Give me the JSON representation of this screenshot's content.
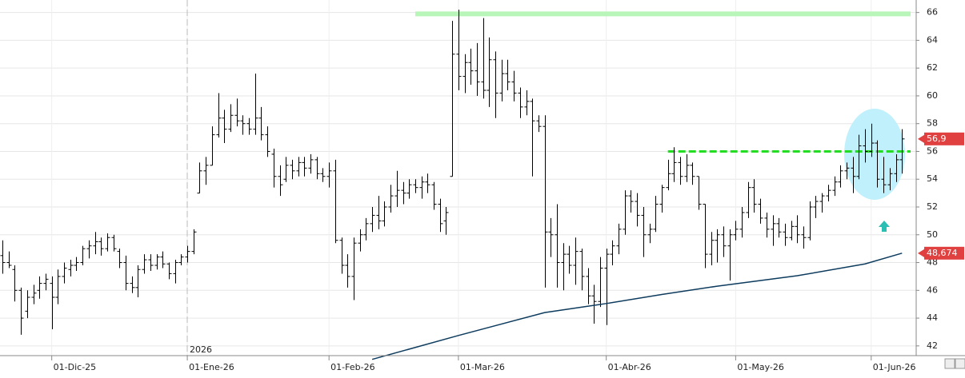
{
  "chart_data": {
    "type": "ohlc",
    "color": "#000000",
    "xlim": [
      -0.4,
      148.3
    ],
    "ylim": [
      41.3,
      66.9
    ],
    "xticks": [
      {
        "value": 8,
        "label": "01-Dic-25"
      },
      {
        "value": 30,
        "label": "01-Ene-26"
      },
      {
        "value": 53,
        "label": "01-Feb-26"
      },
      {
        "value": 74,
        "label": "01-Mar-26"
      },
      {
        "value": 98,
        "label": "01-Abr-26"
      },
      {
        "value": 119,
        "label": "01-May-26"
      },
      {
        "value": 141,
        "label": "01-Jun-26"
      }
    ],
    "yticks": [
      42,
      44,
      46,
      48,
      50,
      52,
      54,
      56,
      58,
      60,
      62,
      64,
      66
    ],
    "grid": true,
    "year_label": "2026",
    "open": [
      48.5,
      48,
      47.5,
      46,
      44.5,
      45.5,
      46,
      46.5,
      46.5,
      45.5,
      47,
      47.5,
      47.8,
      48,
      49,
      49.2,
      49.5,
      49,
      49.8,
      48.8,
      48,
      46.5,
      46.2,
      47.5,
      48.2,
      47.8,
      48.4,
      47.9,
      47.2,
      48,
      48.4,
      48.8,
      53,
      54.6,
      55,
      57.2,
      58.4,
      57.6,
      58.6,
      58.2,
      58,
      57.6,
      58.4,
      57.2,
      55.8,
      54.2,
      54,
      55,
      54.6,
      55.2,
      54.8,
      55.4,
      54.4,
      54.2,
      54.6,
      49.6,
      47.8,
      47,
      49.4,
      50,
      50.8,
      51.4,
      51,
      52,
      52.8,
      53.2,
      53,
      53.6,
      53.4,
      53.8,
      53.6,
      52.2,
      51,
      54.2,
      63,
      61.4,
      62.4,
      61.8,
      61,
      60.4,
      62.6,
      60.2,
      61.6,
      61,
      60.2,
      59.2,
      59.6,
      58.2,
      57.8,
      50.2,
      50,
      48,
      48.6,
      47.8,
      48.8,
      47,
      45.6,
      45.2,
      47.6,
      48.6,
      49.2,
      50.4,
      52.8,
      52.4,
      51.4,
      50,
      50.4,
      52.2,
      53.4,
      54.4,
      55.2,
      54.2,
      55,
      54.2,
      52.2,
      48.6,
      49.6,
      50,
      49.2,
      50,
      50.4,
      51.6,
      53.4,
      52.2,
      51.2,
      50.4,
      50.8,
      50.2,
      49.8,
      50.6,
      50,
      49.8,
      52,
      52.4,
      52.8,
      53.2,
      53.8,
      54.6,
      54.8,
      54.2,
      56.4,
      56,
      56.6,
      54,
      53.6,
      54.4,
      55.4
    ],
    "high": [
      49.6,
      48.8,
      47.8,
      46.2,
      46,
      46.4,
      47,
      47.2,
      47,
      47.5,
      48,
      48.2,
      48.4,
      49.2,
      49.6,
      50.2,
      49.8,
      50.1,
      50,
      49,
      48.5,
      47,
      47.8,
      48.6,
      48.6,
      48.6,
      48.8,
      48,
      48.2,
      48.6,
      49.2,
      50.4,
      55.2,
      55.6,
      57.8,
      60.2,
      59,
      59.4,
      59.8,
      58.6,
      58.4,
      61.6,
      59.2,
      57.8,
      56.2,
      55,
      55.6,
      55.4,
      55.6,
      55.6,
      55.8,
      55.6,
      54.8,
      55.2,
      55.4,
      49.8,
      48.6,
      49.8,
      50.4,
      51.2,
      52,
      52.8,
      52.4,
      53.6,
      54.6,
      53.8,
      54,
      54,
      54.2,
      54.4,
      53.8,
      52.6,
      52,
      65.4,
      66.2,
      63,
      63.4,
      63.8,
      65.6,
      64.2,
      63.2,
      62.6,
      62.6,
      61.8,
      60.6,
      60.4,
      59.8,
      58.6,
      58.6,
      51.2,
      52.2,
      49.4,
      49.2,
      49.8,
      49,
      47.6,
      46.4,
      48.4,
      49,
      49.6,
      50.8,
      53.2,
      53.2,
      53,
      52,
      50.8,
      52.8,
      53.6,
      55.4,
      56.3,
      55.6,
      55.8,
      55.2,
      54.2,
      52.2,
      50.2,
      50.4,
      50.6,
      50.4,
      51,
      52,
      53.8,
      54,
      52.6,
      51.6,
      51.4,
      51.2,
      50.8,
      51,
      51.4,
      50.6,
      52.4,
      52.8,
      53,
      53.6,
      54.2,
      55,
      55.2,
      55.6,
      57.2,
      57.6,
      58,
      56.8,
      55.6,
      54.8,
      55.8,
      57.6
    ],
    "low": [
      47.2,
      47.6,
      45.2,
      42.8,
      44,
      45,
      45.4,
      46,
      43.2,
      45,
      46.5,
      47,
      47.4,
      47.8,
      48.3,
      48.6,
      48.5,
      48.8,
      48.8,
      47.6,
      46,
      45.8,
      45.5,
      47.2,
      47.4,
      47.5,
      47.6,
      46.8,
      46.5,
      47.8,
      48,
      48.6,
      53,
      53.6,
      55,
      57,
      56.6,
      57.4,
      57.8,
      57.2,
      57.2,
      57.2,
      56.8,
      55.6,
      53.4,
      52.8,
      53.8,
      54,
      54.2,
      54.2,
      54.4,
      54,
      53.8,
      53.4,
      49.4,
      47.2,
      46.2,
      45.3,
      48.8,
      49.6,
      50.2,
      50.4,
      50.6,
      51.6,
      52,
      52.2,
      52.6,
      53,
      52.6,
      53,
      51.8,
      50.2,
      50,
      54.2,
      60.4,
      60.2,
      60.8,
      60,
      59.8,
      59.2,
      58.4,
      59.6,
      60.4,
      59.6,
      58.4,
      58.6,
      54.2,
      57.4,
      46.2,
      48.4,
      46.2,
      46,
      47.2,
      46.4,
      46,
      45,
      43.6,
      44.8,
      43.5,
      47.8,
      48.6,
      50,
      51.6,
      50.6,
      48.4,
      49.4,
      50.2,
      51.6,
      53.2,
      53.8,
      53.6,
      53.8,
      53.6,
      51.8,
      47.6,
      47.8,
      48,
      48.4,
      46.7,
      49.6,
      49.8,
      51.2,
      51.6,
      50.8,
      49.8,
      49.2,
      49.8,
      49.2,
      49.6,
      49.4,
      49,
      49.6,
      51.2,
      51.6,
      52.4,
      52.8,
      53.4,
      54,
      53,
      54,
      55.2,
      55.6,
      53.4,
      53,
      53.2,
      53.8,
      54.4
    ],
    "close": [
      48,
      47.8,
      46,
      44,
      45.5,
      45.8,
      46.5,
      46.8,
      45.5,
      47,
      47.6,
      47.8,
      48,
      49,
      49.2,
      49.5,
      49,
      49.8,
      49,
      48,
      46.5,
      46.2,
      47.5,
      48.2,
      47.8,
      48.4,
      47.9,
      47.2,
      48,
      48.4,
      48.8,
      50.2,
      54.6,
      55,
      57.2,
      58.4,
      57.6,
      58.6,
      58.2,
      58,
      57.6,
      58.4,
      57.2,
      56,
      54.2,
      53.6,
      55,
      54.6,
      55.2,
      54.8,
      55.4,
      54.4,
      54.2,
      54.6,
      49.6,
      47.8,
      47,
      49.4,
      50,
      50.8,
      51.4,
      51,
      52,
      52.8,
      53.2,
      53,
      53.6,
      53.4,
      53.8,
      53.6,
      52.2,
      50.8,
      51.6,
      63,
      61.4,
      62.4,
      61.8,
      61,
      60.4,
      62.6,
      60.2,
      61.6,
      61,
      60.2,
      59.2,
      59.6,
      58.2,
      57.8,
      50.2,
      50,
      48,
      48.6,
      47.8,
      48.8,
      47,
      45.6,
      45.2,
      47.6,
      48.6,
      49.2,
      50.4,
      52.8,
      52.4,
      51.4,
      50,
      50.4,
      52.2,
      53.4,
      54.4,
      55.2,
      54.2,
      55,
      54.2,
      52.2,
      48.6,
      49.6,
      50,
      49.2,
      50,
      50.4,
      51.6,
      53.4,
      52.2,
      51.2,
      50.4,
      50.8,
      50.2,
      49.8,
      50.6,
      50,
      49.8,
      52,
      52.4,
      52.8,
      53.2,
      53.8,
      54.6,
      54.8,
      54.2,
      56.4,
      56,
      56.6,
      54,
      53.6,
      54.4,
      55.4,
      56.9
    ],
    "moving_average": {
      "color": "#0d3b5e",
      "x": [
        60,
        74,
        88,
        98,
        107,
        116,
        129,
        140,
        146
      ],
      "values": [
        41.03,
        42.75,
        44.4,
        45.05,
        45.7,
        46.3,
        47.05,
        47.9,
        48.674
      ]
    },
    "hlines": [
      {
        "value": 65.9,
        "start": 67,
        "color": "#b8f5b8",
        "dashed": false
      },
      {
        "value": 56.0,
        "start": 108,
        "color": "#22dd22",
        "dashed": true
      }
    ],
    "price_tags": [
      {
        "value": 56.9,
        "label": "56,9",
        "color": "#e04040"
      },
      {
        "value": 48.674,
        "label": "48,674",
        "color": "#e04040"
      }
    ]
  }
}
